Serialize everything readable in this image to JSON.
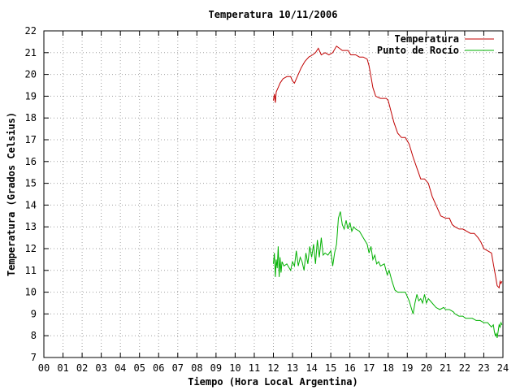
{
  "chart_data": {
    "type": "line",
    "title": "Temperatura 10/11/2006",
    "xlabel": "Tiempo (Hora Local Argentina)",
    "ylabel": "Temperatura (Grados Celsius)",
    "xlim": [
      0,
      24
    ],
    "ylim": [
      7,
      22
    ],
    "grid": true,
    "legend_position": "top-right",
    "x_tick_labels": [
      "00",
      "01",
      "02",
      "03",
      "04",
      "05",
      "06",
      "07",
      "08",
      "09",
      "10",
      "11",
      "12",
      "13",
      "14",
      "15",
      "16",
      "17",
      "18",
      "19",
      "20",
      "21",
      "22",
      "23",
      "24"
    ],
    "y_tick_labels": [
      "7",
      "8",
      "9",
      "10",
      "11",
      "12",
      "13",
      "14",
      "15",
      "16",
      "17",
      "18",
      "19",
      "20",
      "21",
      "22"
    ],
    "series": [
      {
        "name": "Temperatura",
        "color": "#c00000",
        "points": [
          [
            12.0,
            18.8
          ],
          [
            12.05,
            19.1
          ],
          [
            12.1,
            18.7
          ],
          [
            12.15,
            19.2
          ],
          [
            12.25,
            19.4
          ],
          [
            12.35,
            19.6
          ],
          [
            12.5,
            19.8
          ],
          [
            12.7,
            19.9
          ],
          [
            12.9,
            19.9
          ],
          [
            13.0,
            19.7
          ],
          [
            13.1,
            19.6
          ],
          [
            13.25,
            19.9
          ],
          [
            13.45,
            20.3
          ],
          [
            13.65,
            20.6
          ],
          [
            13.85,
            20.8
          ],
          [
            14.05,
            20.9
          ],
          [
            14.2,
            21.0
          ],
          [
            14.35,
            21.2
          ],
          [
            14.5,
            20.9
          ],
          [
            14.7,
            21.0
          ],
          [
            14.9,
            20.9
          ],
          [
            15.1,
            21.0
          ],
          [
            15.3,
            21.3
          ],
          [
            15.45,
            21.2
          ],
          [
            15.6,
            21.1
          ],
          [
            15.9,
            21.1
          ],
          [
            16.05,
            20.9
          ],
          [
            16.3,
            20.9
          ],
          [
            16.5,
            20.8
          ],
          [
            16.7,
            20.8
          ],
          [
            16.9,
            20.7
          ],
          [
            17.0,
            20.4
          ],
          [
            17.1,
            19.9
          ],
          [
            17.2,
            19.4
          ],
          [
            17.35,
            19.0
          ],
          [
            17.6,
            18.9
          ],
          [
            17.9,
            18.9
          ],
          [
            18.0,
            18.8
          ],
          [
            18.15,
            18.3
          ],
          [
            18.3,
            17.8
          ],
          [
            18.5,
            17.3
          ],
          [
            18.7,
            17.1
          ],
          [
            18.9,
            17.1
          ],
          [
            19.1,
            16.8
          ],
          [
            19.3,
            16.2
          ],
          [
            19.5,
            15.7
          ],
          [
            19.7,
            15.2
          ],
          [
            19.9,
            15.2
          ],
          [
            20.1,
            15.0
          ],
          [
            20.3,
            14.4
          ],
          [
            20.55,
            13.9
          ],
          [
            20.75,
            13.5
          ],
          [
            21.0,
            13.4
          ],
          [
            21.2,
            13.4
          ],
          [
            21.35,
            13.1
          ],
          [
            21.5,
            13.0
          ],
          [
            21.7,
            12.9
          ],
          [
            21.9,
            12.9
          ],
          [
            22.1,
            12.8
          ],
          [
            22.3,
            12.7
          ],
          [
            22.5,
            12.7
          ],
          [
            22.7,
            12.5
          ],
          [
            22.85,
            12.3
          ],
          [
            23.0,
            12.0
          ],
          [
            23.2,
            11.9
          ],
          [
            23.4,
            11.8
          ],
          [
            23.5,
            11.3
          ],
          [
            23.6,
            10.8
          ],
          [
            23.7,
            10.3
          ],
          [
            23.8,
            10.2
          ],
          [
            23.85,
            10.5
          ],
          [
            23.9,
            10.4
          ],
          [
            23.95,
            10.5
          ]
        ]
      },
      {
        "name": "Punto de Rocío",
        "color": "#00b000",
        "points": [
          [
            12.0,
            11.3
          ],
          [
            12.05,
            11.8
          ],
          [
            12.1,
            10.7
          ],
          [
            12.15,
            11.5
          ],
          [
            12.2,
            11.1
          ],
          [
            12.25,
            12.1
          ],
          [
            12.3,
            10.7
          ],
          [
            12.35,
            11.6
          ],
          [
            12.4,
            10.9
          ],
          [
            12.45,
            11.4
          ],
          [
            12.55,
            11.2
          ],
          [
            12.7,
            11.3
          ],
          [
            12.9,
            11.0
          ],
          [
            13.0,
            11.4
          ],
          [
            13.1,
            11.2
          ],
          [
            13.2,
            11.9
          ],
          [
            13.3,
            11.2
          ],
          [
            13.4,
            11.6
          ],
          [
            13.5,
            11.4
          ],
          [
            13.6,
            11.0
          ],
          [
            13.7,
            11.8
          ],
          [
            13.8,
            11.3
          ],
          [
            13.9,
            12.1
          ],
          [
            14.0,
            11.6
          ],
          [
            14.1,
            12.2
          ],
          [
            14.2,
            11.3
          ],
          [
            14.3,
            12.4
          ],
          [
            14.4,
            11.6
          ],
          [
            14.5,
            12.5
          ],
          [
            14.6,
            11.7
          ],
          [
            14.7,
            11.8
          ],
          [
            14.85,
            11.7
          ],
          [
            15.0,
            11.9
          ],
          [
            15.1,
            11.2
          ],
          [
            15.2,
            11.8
          ],
          [
            15.3,
            12.2
          ],
          [
            15.4,
            13.4
          ],
          [
            15.5,
            13.7
          ],
          [
            15.6,
            13.1
          ],
          [
            15.7,
            12.9
          ],
          [
            15.8,
            13.3
          ],
          [
            15.9,
            12.9
          ],
          [
            16.0,
            13.2
          ],
          [
            16.1,
            12.8
          ],
          [
            16.2,
            13.0
          ],
          [
            16.3,
            12.9
          ],
          [
            16.5,
            12.8
          ],
          [
            16.7,
            12.5
          ],
          [
            16.9,
            12.2
          ],
          [
            17.0,
            11.8
          ],
          [
            17.1,
            12.1
          ],
          [
            17.2,
            11.5
          ],
          [
            17.3,
            11.7
          ],
          [
            17.4,
            11.3
          ],
          [
            17.5,
            11.4
          ],
          [
            17.6,
            11.2
          ],
          [
            17.8,
            11.3
          ],
          [
            17.95,
            10.8
          ],
          [
            18.05,
            11.0
          ],
          [
            18.2,
            10.5
          ],
          [
            18.35,
            10.1
          ],
          [
            18.5,
            10.0
          ],
          [
            18.7,
            10.0
          ],
          [
            18.9,
            10.0
          ],
          [
            19.1,
            9.6
          ],
          [
            19.2,
            9.3
          ],
          [
            19.3,
            9.0
          ],
          [
            19.4,
            9.5
          ],
          [
            19.5,
            9.9
          ],
          [
            19.6,
            9.6
          ],
          [
            19.7,
            9.7
          ],
          [
            19.8,
            9.5
          ],
          [
            19.9,
            9.9
          ],
          [
            20.0,
            9.5
          ],
          [
            20.1,
            9.7
          ],
          [
            20.3,
            9.5
          ],
          [
            20.5,
            9.3
          ],
          [
            20.7,
            9.2
          ],
          [
            20.9,
            9.3
          ],
          [
            21.0,
            9.2
          ],
          [
            21.2,
            9.2
          ],
          [
            21.4,
            9.1
          ],
          [
            21.5,
            9.0
          ],
          [
            21.7,
            8.9
          ],
          [
            21.9,
            8.9
          ],
          [
            22.05,
            8.8
          ],
          [
            22.2,
            8.8
          ],
          [
            22.4,
            8.8
          ],
          [
            22.6,
            8.7
          ],
          [
            22.8,
            8.7
          ],
          [
            23.0,
            8.6
          ],
          [
            23.2,
            8.6
          ],
          [
            23.3,
            8.5
          ],
          [
            23.4,
            8.4
          ],
          [
            23.5,
            8.5
          ],
          [
            23.55,
            8.2
          ],
          [
            23.6,
            8.0
          ],
          [
            23.65,
            8.1
          ],
          [
            23.7,
            7.9
          ],
          [
            23.75,
            8.2
          ],
          [
            23.8,
            8.5
          ],
          [
            23.85,
            8.4
          ],
          [
            23.9,
            8.6
          ],
          [
            23.95,
            8.5
          ]
        ]
      }
    ]
  }
}
